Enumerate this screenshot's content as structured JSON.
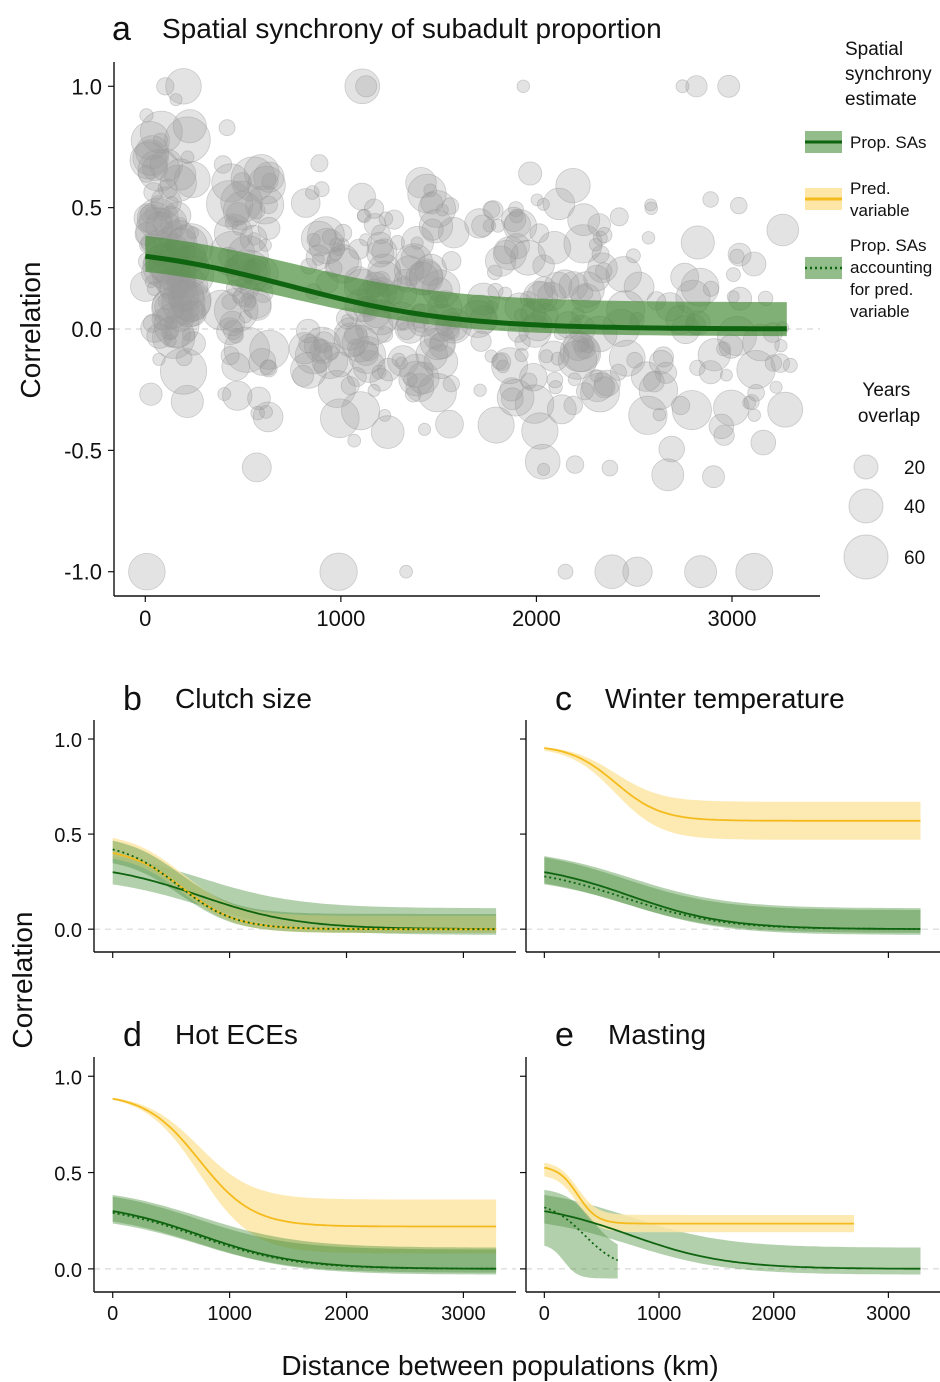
{
  "colors": {
    "green_line": "#0f6410",
    "green_band": "#4a8f3c",
    "yellow_line": "#f5bb1c",
    "yellow_band": "#fde6a6",
    "points": "#9a9a9a"
  },
  "labels": {
    "ylabel_a": "Correlation",
    "ylabel_bottom": "Correlation",
    "xlabel": "Distance between populations (km)"
  },
  "legend": {
    "title_lines": [
      "Spatial",
      "synchrony",
      "estimate"
    ],
    "entries": [
      {
        "key": "prop_sas",
        "lines": [
          "Prop. SAs"
        ],
        "style": "green-solid"
      },
      {
        "key": "pred_var",
        "lines": [
          "Pred.",
          "variable"
        ],
        "style": "yellow-solid"
      },
      {
        "key": "prop_sas_acc",
        "lines": [
          "Prop. SAs",
          "accounting",
          "for pred.",
          "variable"
        ],
        "style": "green-dotted"
      }
    ],
    "size_title_lines": [
      "Years",
      "overlap"
    ],
    "size_entries": [
      {
        "label": "20",
        "value": 20
      },
      {
        "label": "40",
        "value": 40
      },
      {
        "label": "60",
        "value": 60
      }
    ]
  },
  "chart_data": [
    {
      "id": "a",
      "letter": "a",
      "title": "Spatial synchrony of subadult proportion",
      "type": "scatter",
      "xlim": [
        -160,
        3450
      ],
      "ylim": [
        -1.1,
        1.1
      ],
      "xticks": [
        0,
        1000,
        2000,
        3000
      ],
      "yticks": [
        -1.0,
        -0.5,
        0.0,
        0.5,
        1.0
      ],
      "ytick_labels": [
        "-1.0",
        "-0.5",
        "0.0",
        "0.5",
        "1.0"
      ],
      "fit": {
        "name": "Prop. SAs",
        "x_range": [
          0,
          3280
        ],
        "params": {
          "base": 0.0,
          "amp": 0.35,
          "mid": 750,
          "scale": 420
        },
        "band_low": {
          "base": -0.03,
          "amp": 0.31,
          "mid": 750,
          "scale": 420
        },
        "band_high": {
          "base": 0.11,
          "amp": 0.32,
          "mid": 750,
          "scale": 420
        }
      },
      "point_count": 520
    },
    {
      "id": "b",
      "letter": "b",
      "title": "Clutch size",
      "type": "line",
      "xlim": [
        -160,
        3450
      ],
      "ylim": [
        -0.12,
        1.1
      ],
      "yticks": [
        0.0,
        0.5,
        1.0
      ],
      "ytick_labels": [
        "0.0",
        "0.5",
        "1.0"
      ],
      "series": [
        {
          "style": "green-band",
          "x_range": [
            0,
            3280
          ],
          "low": {
            "base": -0.03,
            "amp": 0.31,
            "mid": 750,
            "scale": 420
          },
          "high": {
            "base": 0.11,
            "amp": 0.32,
            "mid": 750,
            "scale": 420
          }
        },
        {
          "style": "yellow-band",
          "x_range": [
            0,
            3280
          ],
          "low": {
            "base": -0.02,
            "amp": 0.42,
            "mid": 600,
            "scale": 230
          },
          "high": {
            "base": 0.07,
            "amp": 0.44,
            "mid": 600,
            "scale": 230
          }
        },
        {
          "style": "green-band",
          "x_range": [
            0,
            3280
          ],
          "low": {
            "base": -0.02,
            "amp": 0.4,
            "mid": 580,
            "scale": 240
          },
          "high": {
            "base": 0.08,
            "amp": 0.42,
            "mid": 580,
            "scale": 240
          }
        },
        {
          "style": "green-line",
          "x_range": [
            0,
            3280
          ],
          "curve": {
            "base": 0.0,
            "amp": 0.35,
            "mid": 750,
            "scale": 420
          }
        },
        {
          "style": "yellow-line",
          "x_range": [
            0,
            3280
          ],
          "curve": {
            "base": 0.0,
            "amp": 0.43,
            "mid": 600,
            "scale": 230
          }
        },
        {
          "style": "green-dotted",
          "x_range": [
            0,
            3280
          ],
          "curve": {
            "base": 0.0,
            "amp": 0.46,
            "mid": 560,
            "scale": 240
          }
        }
      ]
    },
    {
      "id": "c",
      "letter": "c",
      "title": "Winter temperature",
      "type": "line",
      "xlim": [
        -160,
        3450
      ],
      "ylim": [
        -0.12,
        1.1
      ],
      "yticks": [
        0.0,
        0.5,
        1.0
      ],
      "ytick_labels": [
        "",
        "",
        ""
      ],
      "series": [
        {
          "style": "yellow-band",
          "x_range": [
            0,
            3280
          ],
          "low": {
            "base": 0.47,
            "amp": 0.49,
            "mid": 620,
            "scale": 200
          },
          "high": {
            "base": 0.67,
            "amp": 0.3,
            "mid": 620,
            "scale": 200
          }
        },
        {
          "style": "green-band",
          "x_range": [
            0,
            3280
          ],
          "low": {
            "base": -0.03,
            "amp": 0.31,
            "mid": 750,
            "scale": 420
          },
          "high": {
            "base": 0.11,
            "amp": 0.32,
            "mid": 750,
            "scale": 420
          }
        },
        {
          "style": "green-band",
          "x_range": [
            0,
            3280
          ],
          "low": {
            "base": -0.02,
            "amp": 0.31,
            "mid": 700,
            "scale": 420
          },
          "high": {
            "base": 0.1,
            "amp": 0.33,
            "mid": 700,
            "scale": 420
          }
        },
        {
          "style": "yellow-line",
          "x_range": [
            0,
            3280
          ],
          "curve": {
            "base": 0.57,
            "amp": 0.4,
            "mid": 620,
            "scale": 200
          }
        },
        {
          "style": "green-line",
          "x_range": [
            0,
            3280
          ],
          "curve": {
            "base": 0.0,
            "amp": 0.35,
            "mid": 750,
            "scale": 420
          }
        },
        {
          "style": "green-dotted",
          "x_range": [
            0,
            3280
          ],
          "curve": {
            "base": 0.0,
            "amp": 0.33,
            "mid": 700,
            "scale": 420
          }
        }
      ]
    },
    {
      "id": "d",
      "letter": "d",
      "title": "Hot ECEs",
      "type": "line",
      "xlim": [
        -160,
        3450
      ],
      "ylim": [
        -0.12,
        1.1
      ],
      "xticks": [
        0,
        1000,
        2000,
        3000
      ],
      "yticks": [
        0.0,
        0.5,
        1.0
      ],
      "ytick_labels": [
        "0.0",
        "0.5",
        "1.0"
      ],
      "series": [
        {
          "style": "yellow-band",
          "x_range": [
            0,
            3280
          ],
          "low": {
            "base": 0.08,
            "amp": 0.83,
            "mid": 740,
            "scale": 230
          },
          "high": {
            "base": 0.36,
            "amp": 0.55,
            "mid": 740,
            "scale": 230
          }
        },
        {
          "style": "green-band",
          "x_range": [
            0,
            3280
          ],
          "low": {
            "base": -0.03,
            "amp": 0.31,
            "mid": 750,
            "scale": 420
          },
          "high": {
            "base": 0.11,
            "amp": 0.32,
            "mid": 750,
            "scale": 420
          }
        },
        {
          "style": "green-band",
          "x_range": [
            0,
            3280
          ],
          "low": {
            "base": -0.02,
            "amp": 0.31,
            "mid": 720,
            "scale": 400
          },
          "high": {
            "base": 0.1,
            "amp": 0.32,
            "mid": 720,
            "scale": 400
          }
        },
        {
          "style": "yellow-line",
          "x_range": [
            0,
            3280
          ],
          "curve": {
            "base": 0.22,
            "amp": 0.69,
            "mid": 740,
            "scale": 230
          }
        },
        {
          "style": "green-line",
          "x_range": [
            0,
            3280
          ],
          "curve": {
            "base": 0.0,
            "amp": 0.35,
            "mid": 750,
            "scale": 420
          }
        },
        {
          "style": "green-dotted",
          "x_range": [
            0,
            3280
          ],
          "curve": {
            "base": 0.0,
            "amp": 0.34,
            "mid": 730,
            "scale": 410
          }
        }
      ]
    },
    {
      "id": "e",
      "letter": "e",
      "title": "Masting",
      "type": "line",
      "xlim": [
        -160,
        3450
      ],
      "ylim": [
        -0.12,
        1.1
      ],
      "xticks": [
        0,
        1000,
        2000,
        3000
      ],
      "yticks": [
        0.0,
        0.5,
        1.0
      ],
      "ytick_labels": [
        "",
        "",
        ""
      ],
      "series": [
        {
          "style": "green-band",
          "x_range": [
            0,
            3280
          ],
          "low": {
            "base": -0.03,
            "amp": 0.31,
            "mid": 750,
            "scale": 420
          },
          "high": {
            "base": 0.11,
            "amp": 0.32,
            "mid": 750,
            "scale": 420
          }
        },
        {
          "style": "yellow-band",
          "x_range": [
            0,
            2700
          ],
          "low": {
            "base": 0.19,
            "amp": 0.3,
            "mid": 290,
            "scale": 85
          },
          "high": {
            "base": 0.28,
            "amp": 0.28,
            "mid": 290,
            "scale": 85
          }
        },
        {
          "style": "green-band",
          "x_range": [
            0,
            640
          ],
          "low": {
            "base": -0.05,
            "amp": 0.18,
            "mid": 170,
            "scale": 60
          },
          "high": {
            "base": 0.08,
            "amp": 0.34,
            "mid": 420,
            "scale": 120
          }
        },
        {
          "style": "green-line",
          "x_range": [
            0,
            3280
          ],
          "curve": {
            "base": 0.0,
            "amp": 0.35,
            "mid": 750,
            "scale": 420
          }
        },
        {
          "style": "yellow-line",
          "x_range": [
            0,
            2700
          ],
          "curve": {
            "base": 0.235,
            "amp": 0.3,
            "mid": 290,
            "scale": 85
          }
        },
        {
          "style": "green-dotted",
          "x_range": [
            0,
            640
          ],
          "curve": {
            "base": 0.0,
            "amp": 0.35,
            "mid": 350,
            "scale": 150
          }
        }
      ]
    }
  ]
}
